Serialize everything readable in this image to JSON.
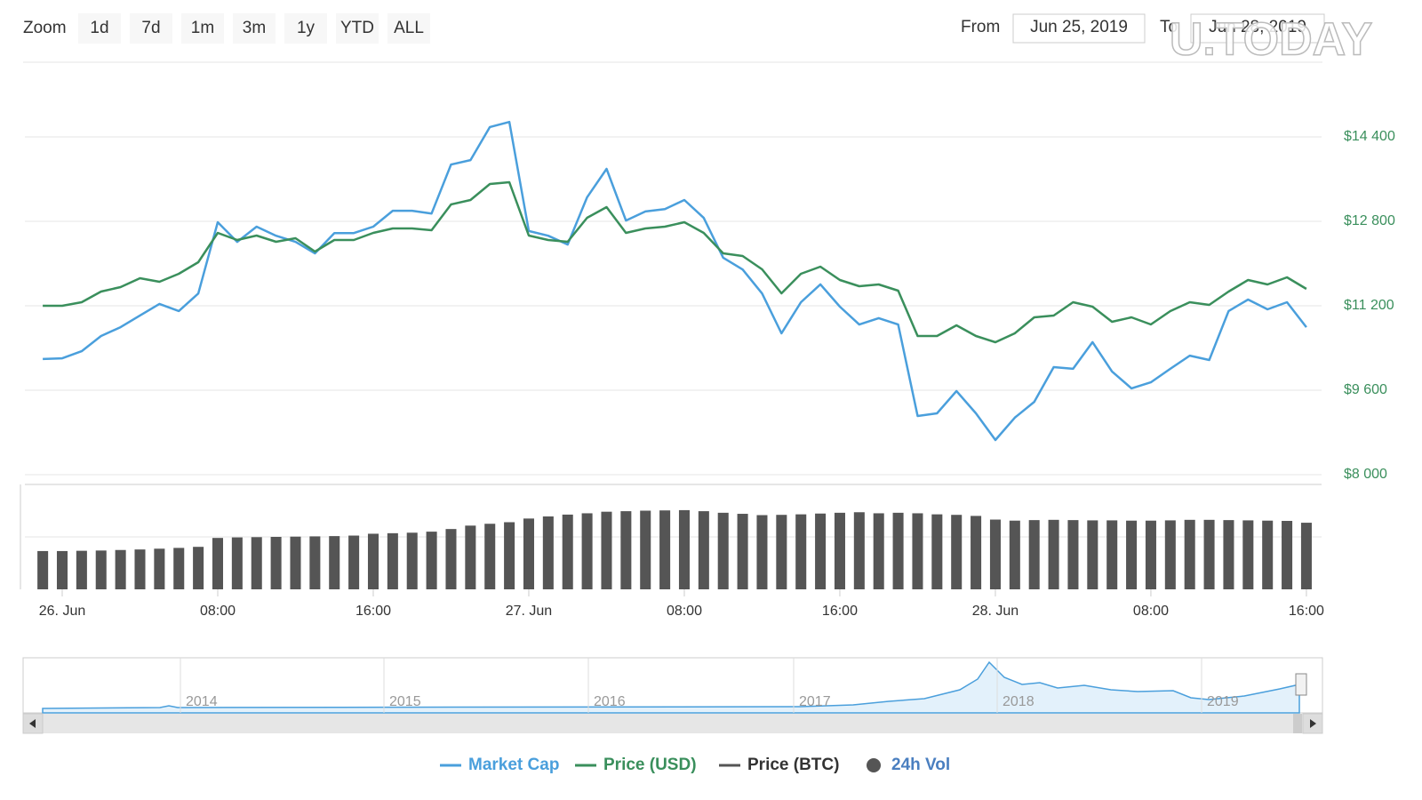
{
  "ui": {
    "zoom_label": "Zoom",
    "zoom_buttons": [
      "1d",
      "7d",
      "1m",
      "3m",
      "1y",
      "YTD",
      "ALL"
    ],
    "from_label": "From",
    "from_value": "Jun 25, 2019",
    "to_label": "To",
    "to_value": "Jun 28, 2019",
    "watermark": "U.TODAY"
  },
  "chart_data": {
    "type": "line",
    "x": [
      -1,
      0,
      1,
      2,
      3,
      4,
      5,
      6,
      7,
      8,
      9,
      10,
      11,
      12,
      13,
      14,
      15,
      16,
      17,
      18,
      19,
      20,
      21,
      22,
      23,
      24,
      25,
      26,
      27,
      28,
      29,
      30,
      31,
      32,
      33,
      34,
      35,
      36,
      37,
      38,
      39,
      40,
      41,
      42,
      43,
      44,
      45,
      46,
      47,
      48,
      49,
      50,
      51,
      52,
      53,
      54,
      55,
      56,
      57,
      58,
      59,
      60,
      61,
      62,
      63,
      64
    ],
    "xlim": [
      -1.92,
      64.78
    ],
    "xticks": [
      {
        "value": 0,
        "label": "26. Jun"
      },
      {
        "value": 8,
        "label": "08:00"
      },
      {
        "value": 16,
        "label": "16:00"
      },
      {
        "value": 24,
        "label": "27. Jun"
      },
      {
        "value": 32,
        "label": "08:00"
      },
      {
        "value": 40,
        "label": "16:00"
      },
      {
        "value": 48,
        "label": "28. Jun"
      },
      {
        "value": 56,
        "label": "08:00"
      },
      {
        "value": 64,
        "label": "16:00"
      }
    ],
    "ylim": [
      7832,
      15814
    ],
    "yticks": [
      {
        "value": 8000,
        "label": "$8 000"
      },
      {
        "value": 9600,
        "label": "$9 600"
      },
      {
        "value": 11200,
        "label": "$11 200"
      },
      {
        "value": 12800,
        "label": "$12 800"
      },
      {
        "value": 14400,
        "label": "$14 400"
      }
    ],
    "y2lim": [
      147.6,
      272.4
    ],
    "vol_lim": [
      0,
      40
    ],
    "grid": true,
    "legend_position": "bottom",
    "series": [
      {
        "name": "Market Cap",
        "color": "#4a9fdc",
        "axis": "y2",
        "symbol": "line",
        "values": [
          184.5,
          184.7,
          186.8,
          191.3,
          193.9,
          197.4,
          200.8,
          198.7,
          203.9,
          225.0,
          219.2,
          223.7,
          221.0,
          219.2,
          215.8,
          221.8,
          221.8,
          223.7,
          228.4,
          228.4,
          227.6,
          242.1,
          243.4,
          253.2,
          254.7,
          222.4,
          221.0,
          218.4,
          232.4,
          240.8,
          225.5,
          228.2,
          228.9,
          231.6,
          226.3,
          214.5,
          211.0,
          203.9,
          192.1,
          201.3,
          206.6,
          200.0,
          194.7,
          196.6,
          194.7,
          167.6,
          168.4,
          175.0,
          168.4,
          160.5,
          167.1,
          171.8,
          182.1,
          181.6,
          189.5,
          180.8,
          175.8,
          177.6,
          181.6,
          185.5,
          184.2,
          198.7,
          202.1,
          199.2,
          201.3,
          193.9
        ]
      },
      {
        "name": "Price (USD)",
        "color": "#3a8f5c",
        "symbol": "line",
        "values": [
          11200,
          11200,
          11267,
          11469,
          11553,
          11722,
          11654,
          11806,
          12025,
          12580,
          12446,
          12530,
          12412,
          12479,
          12227,
          12446,
          12446,
          12580,
          12665,
          12665,
          12631,
          13119,
          13204,
          13507,
          13541,
          12530,
          12446,
          12412,
          12867,
          13069,
          12580,
          12665,
          12698,
          12783,
          12580,
          12193,
          12143,
          11890,
          11435,
          11806,
          11941,
          11688,
          11570,
          11604,
          11486,
          10627,
          10627,
          10829,
          10627,
          10509,
          10678,
          10981,
          11014,
          11267,
          11183,
          10897,
          10981,
          10846,
          11099,
          11267,
          11216,
          11469,
          11688,
          11604,
          11739,
          11520
        ]
      },
      {
        "name": "Price (BTC)",
        "color": "#555555",
        "symbol": "line"
      },
      {
        "name": "24h Vol",
        "color": "#555555",
        "symbol": "circle",
        "axis": "vol",
        "values": [
          14.6,
          14.6,
          14.7,
          14.8,
          15.0,
          15.2,
          15.5,
          15.8,
          16.2,
          19.6,
          19.8,
          19.9,
          20.0,
          20.1,
          20.2,
          20.3,
          20.5,
          21.2,
          21.4,
          21.6,
          22.0,
          23.0,
          24.3,
          25.0,
          25.6,
          27.0,
          27.8,
          28.5,
          29.0,
          29.6,
          29.8,
          30.0,
          30.1,
          30.2,
          29.8,
          29.2,
          28.8,
          28.3,
          28.4,
          28.6,
          28.9,
          29.2,
          29.4,
          29.0,
          29.2,
          29.0,
          28.6,
          28.4,
          28.0,
          26.6,
          26.2,
          26.4,
          26.5,
          26.4,
          26.3,
          26.3,
          26.2,
          26.2,
          26.3,
          26.5,
          26.5,
          26.4,
          26.3,
          26.2,
          26.1,
          25.4
        ]
      }
    ]
  },
  "navigator": {
    "years": [
      "2014",
      "2015",
      "2016",
      "2017",
      "2018",
      "2019"
    ]
  }
}
